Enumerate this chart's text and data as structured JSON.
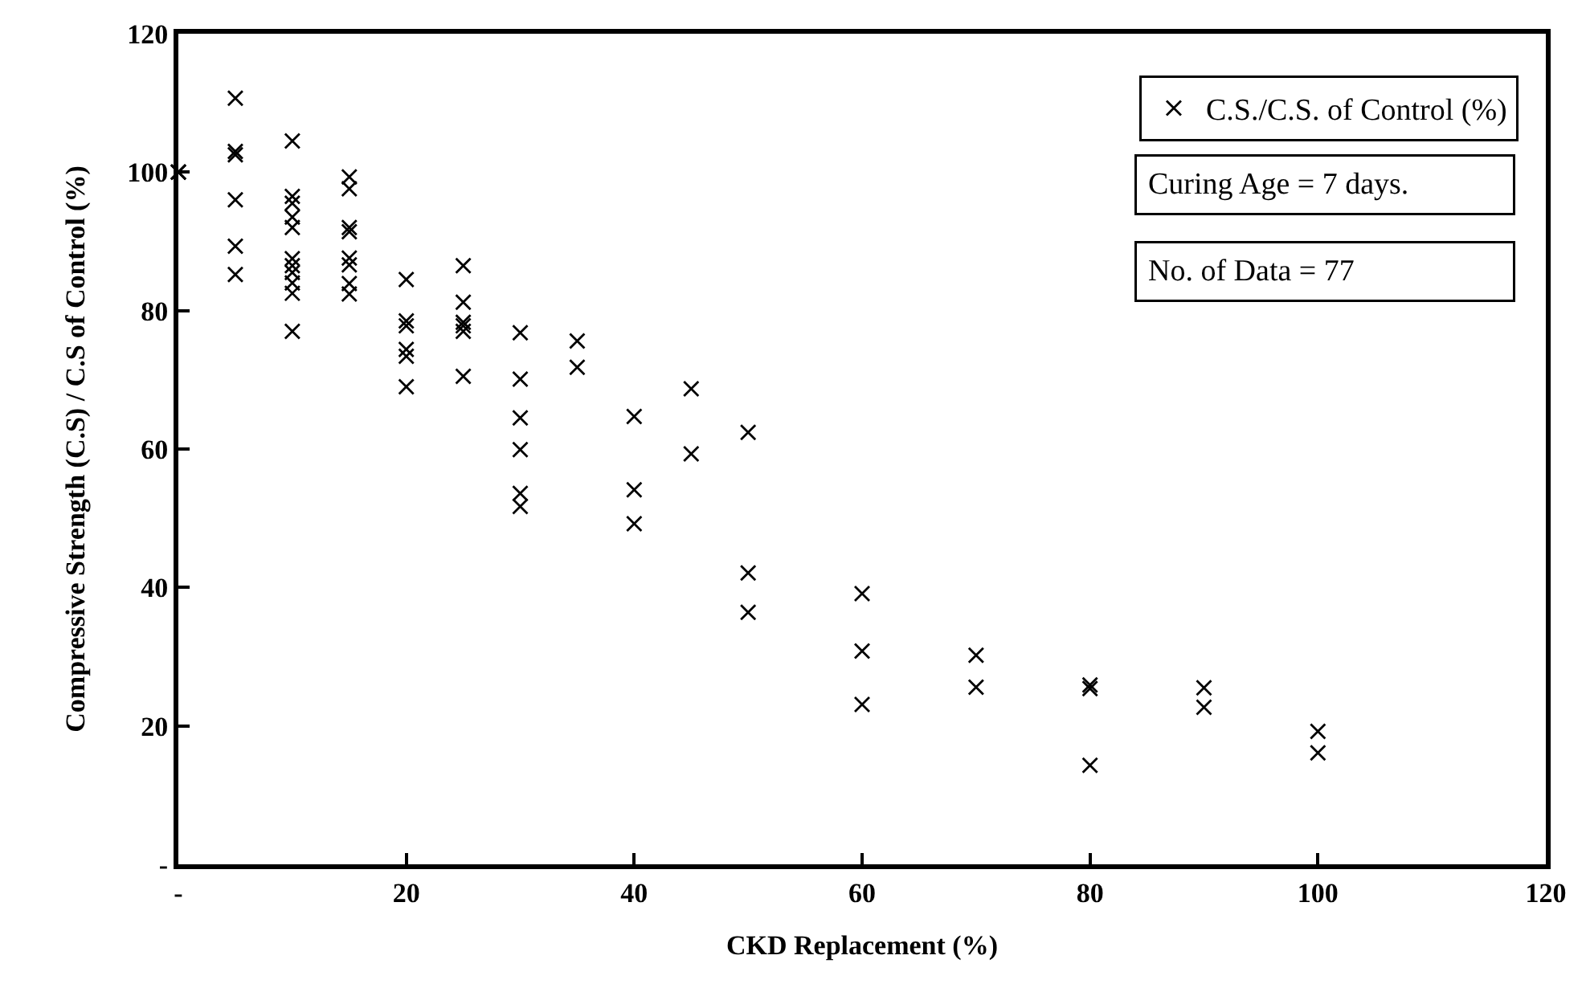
{
  "chart_data": {
    "type": "scatter",
    "xlabel": "CKD Replacement (%)",
    "ylabel": "Compressive Strength (C.S) / C.S of Control (%)",
    "x": [
      0,
      0,
      0,
      5,
      5,
      5,
      5,
      5,
      5,
      10,
      10,
      10,
      10,
      10,
      10,
      10,
      10,
      10,
      10,
      10,
      15,
      15,
      15,
      15,
      15,
      15,
      15,
      15,
      20,
      20,
      20,
      20,
      20,
      20,
      25,
      25,
      25,
      25,
      25,
      25,
      30,
      30,
      30,
      30,
      30,
      30,
      35,
      35,
      40,
      40,
      40,
      45,
      45,
      50,
      50,
      50,
      60,
      60,
      60,
      70,
      70,
      80,
      80,
      80,
      90,
      90,
      100,
      100
    ],
    "series": [
      {
        "name": "C.S./C.S. of Control (%)",
        "color": "#000000",
        "values": [
          100,
          100,
          100,
          110.7,
          103,
          102.5,
          96,
          89.3,
          85.2,
          104.5,
          96.5,
          95.5,
          93.5,
          92,
          87.5,
          86.5,
          85.5,
          84,
          82.5,
          77,
          99.3,
          97.6,
          92,
          91.4,
          87.6,
          86.6,
          83.9,
          82.4,
          84.5,
          78.5,
          77.8,
          74.4,
          73.4,
          69,
          86.5,
          81.2,
          78.3,
          77.8,
          77,
          70.5,
          76.8,
          70.1,
          64.5,
          59.9,
          53.6,
          51.7,
          75.6,
          71.8,
          64.7,
          54.1,
          49.2,
          68.7,
          59.3,
          62.4,
          42.1,
          36.4,
          39.1,
          30.8,
          23.1,
          30.2,
          25.6,
          25.9,
          25.4,
          14.3,
          25.5,
          22.7,
          19.2,
          16.1
        ]
      }
    ],
    "xlim": [
      0,
      120
    ],
    "xticks": [
      {
        "value": 0,
        "label": "-"
      },
      20,
      40,
      60,
      80,
      100,
      120
    ],
    "ylim": [
      0,
      120
    ],
    "yticks": [
      {
        "value": 0,
        "label": "-"
      },
      20,
      40,
      60,
      80,
      100,
      120
    ],
    "marker": "cross",
    "legend": "top right",
    "annotations": [
      "Curing Age = 7 days.",
      "No. of Data = 77"
    ]
  }
}
